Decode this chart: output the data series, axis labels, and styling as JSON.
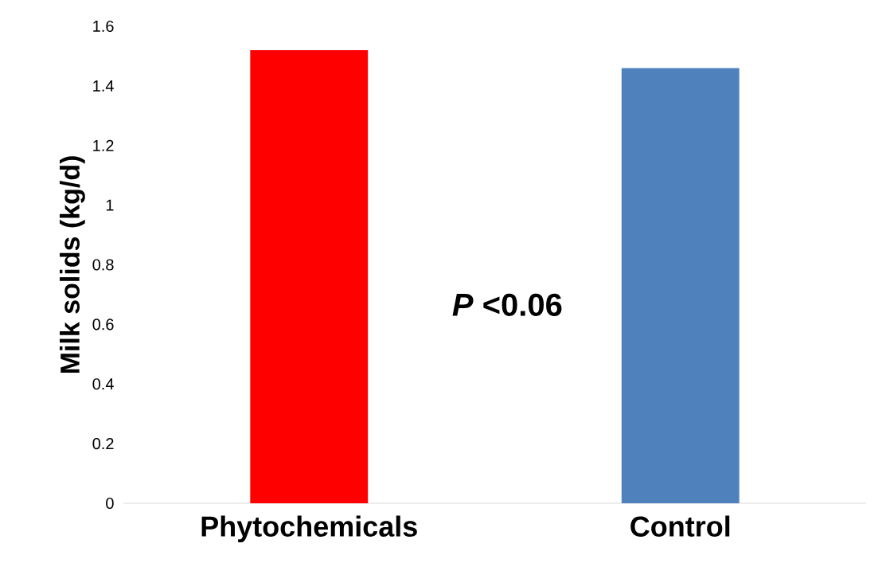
{
  "chart_data": {
    "type": "bar",
    "categories": [
      "Phytochemicals",
      "Control"
    ],
    "values": [
      1.52,
      1.46
    ],
    "colors": [
      "#ff0000",
      "#4f81bd"
    ],
    "ylabel": "Milk solids (kg/d)",
    "ylim": [
      0,
      1.6
    ],
    "yticks": [
      0,
      0.2,
      0.4,
      0.6,
      0.8,
      1,
      1.2,
      1.4,
      1.6
    ],
    "annotations": [
      "*P* <0.06"
    ],
    "grid": false
  }
}
